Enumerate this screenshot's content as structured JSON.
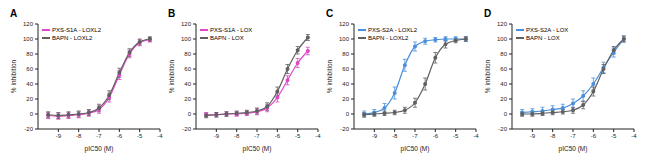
{
  "chart_data": [
    {
      "type": "line",
      "title": "A",
      "x_label": "pIC50 (M)",
      "y_label": "% inhibition",
      "marker": "circle",
      "legend": "upper left",
      "x": [
        -9.5,
        -9,
        -8.5,
        -8,
        -7.5,
        -7,
        -6.5,
        -6,
        -5.5,
        -5,
        -4.5
      ],
      "xlim": [
        -10,
        -4
      ],
      "xticks": [
        -9,
        -8,
        -7,
        -6,
        -5,
        -4
      ],
      "ylim": [
        -20,
        120
      ],
      "yticks": [
        -20,
        0,
        20,
        40,
        60,
        80,
        100,
        120
      ],
      "series": [
        {
          "name": "PXS-S1A - LOXL2",
          "color": "#e048c8",
          "values": [
            -2,
            -3,
            -2,
            -1,
            1,
            6,
            22,
            52,
            80,
            95,
            99
          ],
          "errors": [
            4,
            4,
            4,
            4,
            4,
            5,
            6,
            6,
            5,
            4,
            3
          ]
        },
        {
          "name": "BAPN - LOXL2",
          "color": "#606060",
          "values": [
            -1,
            -2,
            -1,
            0,
            2,
            8,
            25,
            55,
            82,
            96,
            100
          ],
          "errors": [
            4,
            4,
            4,
            4,
            4,
            5,
            6,
            6,
            5,
            4,
            3
          ]
        }
      ]
    },
    {
      "type": "line",
      "title": "B",
      "x_label": "pIC50 (M)",
      "y_label": "% inhibition",
      "marker": "circle",
      "legend": "upper left",
      "x": [
        -9.5,
        -9,
        -8.5,
        -8,
        -7.5,
        -7,
        -6.5,
        -6,
        -5.5,
        -5,
        -4.5
      ],
      "xlim": [
        -10,
        -4
      ],
      "xticks": [
        -9,
        -8,
        -7,
        -6,
        -5,
        -4
      ],
      "ylim": [
        -20,
        120
      ],
      "yticks": [
        -20,
        0,
        20,
        40,
        60,
        80,
        100,
        120
      ],
      "series": [
        {
          "name": "PXS-S1A - LOX",
          "color": "#e048c8",
          "values": [
            -1,
            -1,
            0,
            0,
            1,
            3,
            8,
            22,
            45,
            68,
            84
          ],
          "errors": [
            3,
            3,
            3,
            3,
            3,
            4,
            5,
            6,
            6,
            6,
            5
          ]
        },
        {
          "name": "BAPN - LOX",
          "color": "#606060",
          "values": [
            -2,
            -1,
            0,
            1,
            2,
            4,
            10,
            30,
            60,
            85,
            102
          ],
          "errors": [
            3,
            3,
            3,
            3,
            3,
            4,
            5,
            6,
            6,
            5,
            4
          ]
        }
      ]
    },
    {
      "type": "line",
      "title": "C",
      "x_label": "pIC50 (M)",
      "y_label": "% inhibition",
      "marker": "circle",
      "legend": "upper left",
      "x": [
        -9.5,
        -9,
        -8.5,
        -8,
        -7.5,
        -7,
        -6.5,
        -6,
        -5.5,
        -5,
        -4.5
      ],
      "xlim": [
        -10,
        -4
      ],
      "xticks": [
        -9,
        -8,
        -7,
        -6,
        -5,
        -4
      ],
      "ylim": [
        -20,
        120
      ],
      "yticks": [
        -20,
        0,
        20,
        40,
        60,
        80,
        100,
        120
      ],
      "series": [
        {
          "name": "PXS-S2A - LOXL2",
          "color": "#4a8fdc",
          "values": [
            0,
            2,
            8,
            28,
            65,
            90,
            97,
            99,
            100,
            100,
            100
          ],
          "errors": [
            4,
            4,
            6,
            8,
            8,
            6,
            4,
            3,
            3,
            3,
            3
          ]
        },
        {
          "name": "BAPN - LOXL2",
          "color": "#606060",
          "values": [
            -1,
            0,
            1,
            2,
            5,
            15,
            40,
            75,
            93,
            98,
            100
          ],
          "errors": [
            3,
            3,
            3,
            3,
            4,
            6,
            8,
            7,
            5,
            3,
            3
          ]
        }
      ]
    },
    {
      "type": "line",
      "title": "D",
      "x_label": "pIC50 (M)",
      "y_label": "% inhibition",
      "marker": "circle",
      "legend": "upper left",
      "x": [
        -9.5,
        -9,
        -8.5,
        -8,
        -7.5,
        -7,
        -6.5,
        -6,
        -5.5,
        -5,
        -4.5
      ],
      "xlim": [
        -10,
        -4
      ],
      "xticks": [
        -9,
        -8,
        -7,
        -6,
        -5,
        -4
      ],
      "ylim": [
        -20,
        120
      ],
      "yticks": [
        -20,
        0,
        20,
        40,
        60,
        80,
        100,
        120
      ],
      "series": [
        {
          "name": "PXS-S2A - LOX",
          "color": "#4a8fdc",
          "values": [
            2,
            3,
            4,
            6,
            8,
            14,
            24,
            40,
            62,
            82,
            100
          ],
          "errors": [
            4,
            4,
            5,
            5,
            5,
            6,
            7,
            8,
            7,
            6,
            4
          ]
        },
        {
          "name": "BAPN - LOX",
          "color": "#606060",
          "values": [
            0,
            0,
            1,
            2,
            3,
            5,
            12,
            30,
            60,
            85,
            100
          ],
          "errors": [
            3,
            3,
            3,
            3,
            3,
            4,
            5,
            6,
            6,
            5,
            4
          ]
        }
      ]
    }
  ]
}
